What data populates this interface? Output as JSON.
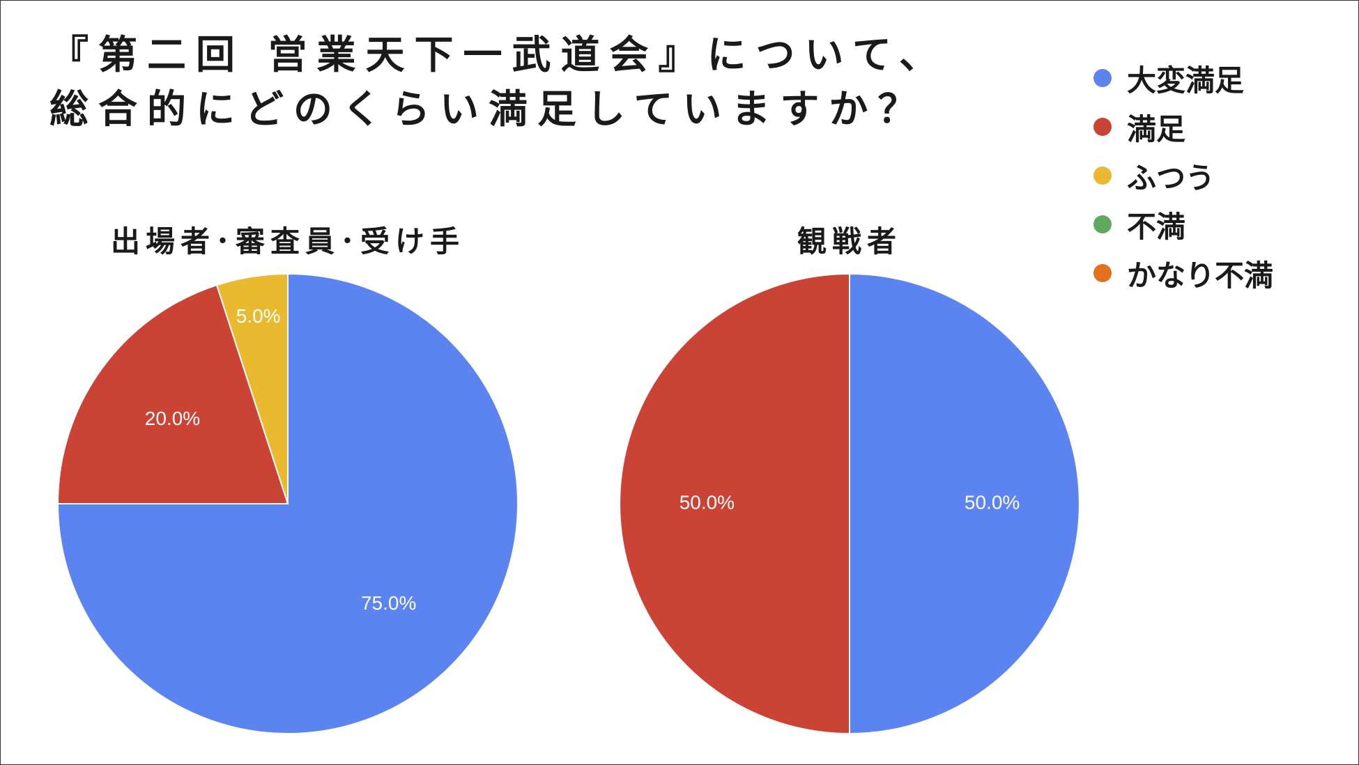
{
  "title": {
    "line1": "『第二回 営業天下一武道会』について、",
    "line2": "総合的にどのくらい満足していますか？"
  },
  "legend": [
    {
      "label": "大変満足",
      "color": "#5b84f0"
    },
    {
      "label": "満足",
      "color": "#cb4335"
    },
    {
      "label": "ふつう",
      "color": "#e9b92f"
    },
    {
      "label": "不満",
      "color": "#5fa85c"
    },
    {
      "label": "かなり不満",
      "color": "#e2701d"
    }
  ],
  "chart_data": [
    {
      "type": "pie",
      "title": "出場者･審査員･受け手",
      "categories": [
        "大変満足",
        "満足",
        "ふつう",
        "不満",
        "かなり不満"
      ],
      "values": [
        75.0,
        20.0,
        5.0,
        0.0,
        0.0
      ],
      "labels": [
        "75.0%",
        "20.0%",
        "5.0%",
        "",
        ""
      ],
      "colors": [
        "#5b84f0",
        "#cb4335",
        "#e9b92f",
        "#5fa85c",
        "#e2701d"
      ],
      "legend_position": "top-right"
    },
    {
      "type": "pie",
      "title": "観戦者",
      "categories": [
        "大変満足",
        "満足",
        "ふつう",
        "不満",
        "かなり不満"
      ],
      "values": [
        50.0,
        50.0,
        0.0,
        0.0,
        0.0
      ],
      "labels": [
        "50.0%",
        "50.0%",
        "",
        "",
        ""
      ],
      "colors": [
        "#5b84f0",
        "#cb4335",
        "#e9b92f",
        "#5fa85c",
        "#e2701d"
      ],
      "legend_position": "top-right"
    }
  ]
}
